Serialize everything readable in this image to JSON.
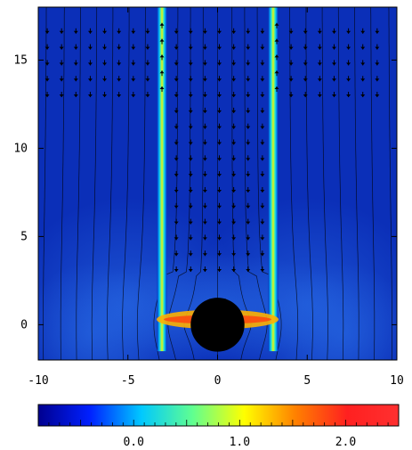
{
  "chart_data": {
    "type": "heatmap",
    "title": "",
    "xlabel": "",
    "ylabel": "",
    "xlim": [
      -10,
      10
    ],
    "ylim": [
      -2,
      18
    ],
    "x_ticks": [
      -10,
      -5,
      0,
      5,
      10
    ],
    "x_tick_labels": [
      "-10",
      "-5",
      "0",
      "5",
      "10"
    ],
    "y_ticks": [
      0,
      5,
      10,
      15
    ],
    "y_tick_labels": [
      "0",
      "5",
      "10",
      "15"
    ],
    "colorbar": {
      "range": [
        -0.9,
        2.5
      ],
      "ticks": [
        0.0,
        1.0,
        2.0
      ],
      "tick_labels": [
        "0.0",
        "1.0",
        "2.0"
      ],
      "placement": "bottom",
      "colormap": [
        "#00008f",
        "#0020ff",
        "#00c8ff",
        "#60ff90",
        "#ffff00",
        "#ff8000",
        "#ff2020",
        "#ff3030"
      ]
    },
    "obstacle": {
      "shape": "circle",
      "center": [
        0,
        0
      ],
      "radius": 1.5,
      "color": "#000000"
    },
    "jets": [
      {
        "name": "",
        "x": -3.1,
        "y_from": -1.5,
        "y_to": 18,
        "peak_value": 1.5
      },
      {
        "name": "",
        "x": 3.1,
        "y_from": -1.5,
        "y_to": 18,
        "peak_value": 1.5
      }
    ],
    "background_value": -0.9,
    "grid": false,
    "legend": "none"
  }
}
